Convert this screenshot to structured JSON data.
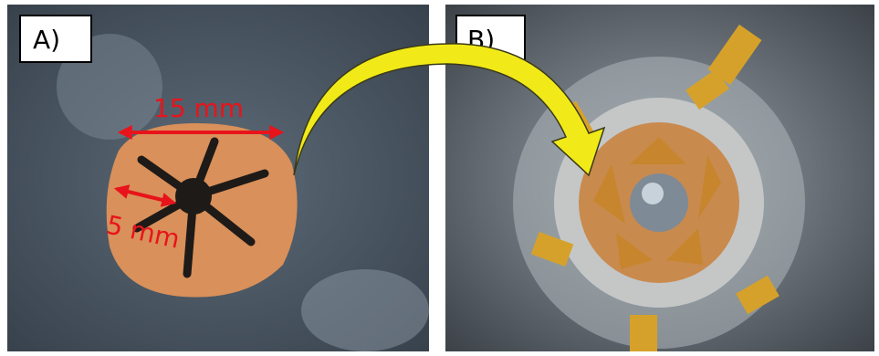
{
  "panels": [
    {
      "label": "A)"
    },
    {
      "label": "B)"
    }
  ],
  "annotations": {
    "large_diameter": "15 mm",
    "small_diameter": "5 mm"
  }
}
